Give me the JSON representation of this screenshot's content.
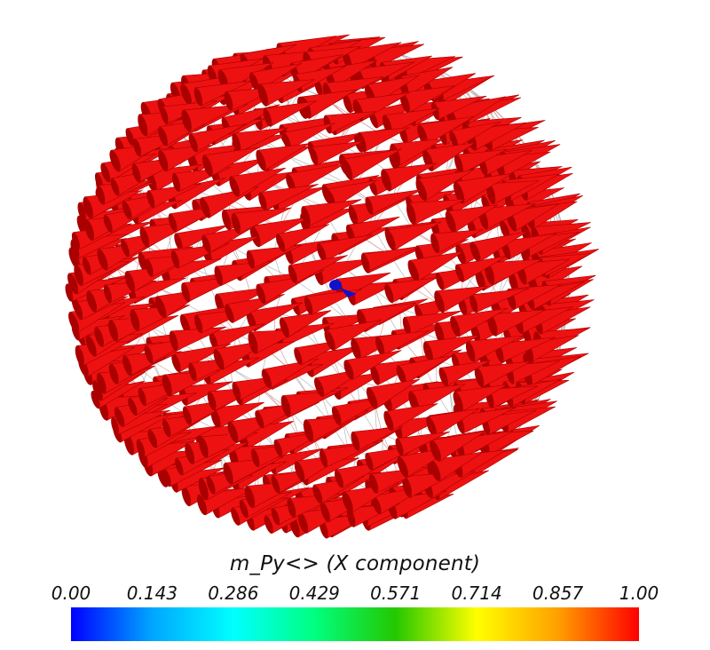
{
  "scene": {
    "glyph_color": "#ee1111",
    "glyph_shade": "#aa0000",
    "origin_marker_color": "#1111cc",
    "mesh_color": "#b8b8b8",
    "mesh_inner_color": "#e09a9a",
    "glyph_direction": "+x"
  },
  "colorbar": {
    "title": "m_Py<> (X component)",
    "ticks": [
      "0.00",
      "0.143",
      "0.286",
      "0.429",
      "0.571",
      "0.714",
      "0.857",
      "1.00"
    ],
    "range": [
      0,
      1
    ],
    "stops": [
      "#0000ff",
      "#00a6ff",
      "#00ffff",
      "#00ff80",
      "#24c800",
      "#ffff00",
      "#ffa000",
      "#ff0000"
    ]
  }
}
